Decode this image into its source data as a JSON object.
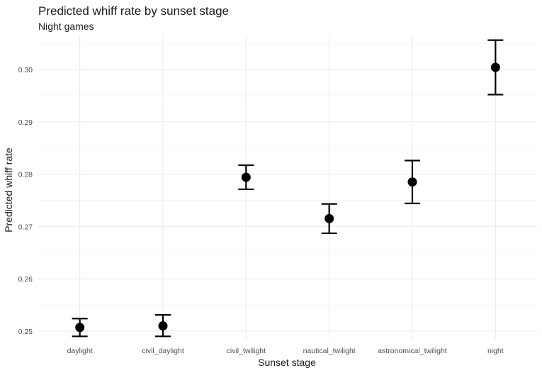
{
  "chart_data": {
    "type": "scatter",
    "title": "Predicted whiff rate by sunset stage",
    "subtitle": "Night games",
    "xlabel": "Sunset stage",
    "ylabel": "Predicted whiff rate",
    "categories": [
      "daylight",
      "civil_daylight",
      "civil_twilight",
      "nautical_twilight",
      "astronomical_twilight",
      "night"
    ],
    "values": [
      0.2507,
      0.251,
      0.2794,
      0.2715,
      0.2785,
      0.3004
    ],
    "lower": [
      0.249,
      0.249,
      0.2771,
      0.2687,
      0.2744,
      0.2952
    ],
    "upper": [
      0.2524,
      0.2531,
      0.2817,
      0.2743,
      0.2826,
      0.3056
    ],
    "yticks": [
      "0.25",
      "0.26",
      "0.27",
      "0.28",
      "0.29",
      "0.30"
    ],
    "ylim": [
      0.2485,
      0.3065
    ],
    "grid": true,
    "legend": "none"
  }
}
